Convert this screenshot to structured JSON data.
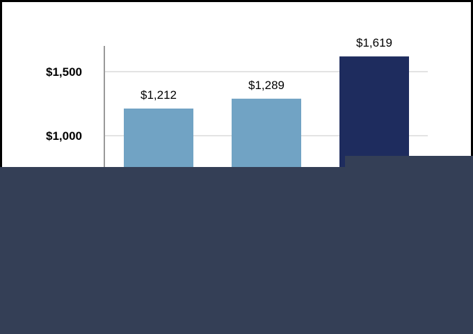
{
  "chart_data": {
    "type": "bar",
    "title": "",
    "xlabel": "",
    "ylabel": "",
    "categories": [
      "",
      "",
      ""
    ],
    "values": [
      1212,
      1289,
      1619
    ],
    "value_labels": [
      "$1,212",
      "$1,289",
      "$1,619"
    ],
    "bar_colors": [
      "#71a3c4",
      "#71a3c4",
      "#1e2c5e"
    ],
    "y_ticks": [
      1000,
      1500
    ],
    "y_tick_labels": [
      "$1,000",
      "$1,500"
    ],
    "grid": true,
    "legend": "none"
  },
  "colors": {
    "overlay": "#343f56",
    "gridline": "#e3e3e3",
    "axis": "#999999"
  }
}
